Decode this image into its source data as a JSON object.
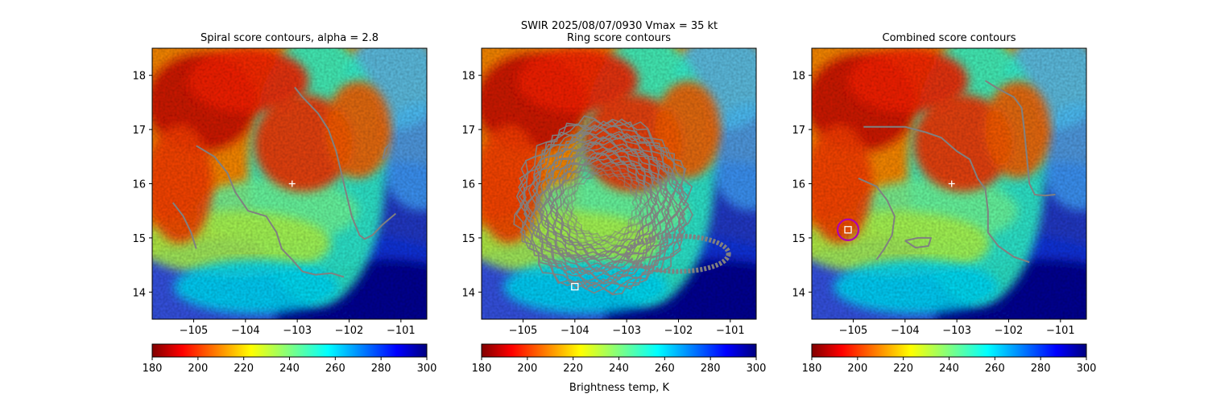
{
  "figure": {
    "suptitle_line1": "SWIR  2025/08/07/0930    Vmax = 35 kt"
  },
  "chart_data": [
    {
      "type": "heatmap",
      "title": "Spiral score contours, alpha =  2.8",
      "xlim": [
        -105.8,
        -100.5
      ],
      "ylim": [
        13.5,
        18.5
      ],
      "xticks": [
        -105,
        -104,
        -103,
        -102,
        -101
      ],
      "yticks": [
        14,
        15,
        16,
        17,
        18
      ],
      "center_marker": {
        "lon": -103.1,
        "lat": 16.0
      },
      "contour_lines": [
        {
          "points": [
            [
              -103.05,
              17.78
            ],
            [
              -102.9,
              17.6
            ],
            [
              -102.6,
              17.3
            ],
            [
              -102.4,
              17.0
            ],
            [
              -102.25,
              16.6
            ],
            [
              -102.15,
              16.2
            ],
            [
              -102.05,
              15.8
            ],
            [
              -101.95,
              15.4
            ],
            [
              -101.8,
              15.05
            ],
            [
              -101.7,
              14.98
            ],
            [
              -101.55,
              15.05
            ],
            [
              -101.35,
              15.25
            ],
            [
              -101.1,
              15.45
            ]
          ]
        },
        {
          "points": [
            [
              -104.95,
              16.7
            ],
            [
              -104.6,
              16.5
            ],
            [
              -104.35,
              16.2
            ],
            [
              -104.2,
              15.85
            ],
            [
              -103.95,
              15.5
            ],
            [
              -103.6,
              15.4
            ],
            [
              -103.4,
              15.1
            ],
            [
              -103.3,
              14.8
            ],
            [
              -103.1,
              14.6
            ],
            [
              -102.9,
              14.38
            ],
            [
              -102.65,
              14.32
            ],
            [
              -102.35,
              14.35
            ],
            [
              -102.1,
              14.28
            ]
          ]
        },
        {
          "points": [
            [
              -105.4,
              15.65
            ],
            [
              -105.2,
              15.4
            ],
            [
              -105.05,
              15.1
            ],
            [
              -104.95,
              14.8
            ]
          ]
        },
        {
          "points": [
            [
              -101.35,
              16.45
            ],
            [
              -101.25,
              16.55
            ],
            [
              -101.2,
              16.75
            ],
            [
              -101.3,
              16.65
            ],
            [
              -101.35,
              16.45
            ]
          ]
        }
      ]
    },
    {
      "type": "heatmap",
      "title": "Ring score contours",
      "xlim": [
        -105.8,
        -100.5
      ],
      "ylim": [
        13.5,
        18.5
      ],
      "xticks": [
        -105,
        -104,
        -103,
        -102,
        -101
      ],
      "yticks": [
        14,
        15,
        16,
        17,
        18
      ],
      "ring_region": {
        "center_lon": -103.45,
        "center_lat": 15.6,
        "radius_deg": 1.7,
        "extends_to_lon": -101.5
      },
      "best_point_marker": {
        "lon": -104.0,
        "lat": 14.1
      }
    },
    {
      "type": "heatmap",
      "title": "Combined score contours",
      "xlim": [
        -105.8,
        -100.5
      ],
      "ylim": [
        13.5,
        18.5
      ],
      "xticks": [
        -105,
        -104,
        -103,
        -102,
        -101
      ],
      "yticks": [
        14,
        15,
        16,
        17,
        18
      ],
      "center_marker": {
        "lon": -103.1,
        "lat": 16.0
      },
      "best_point_marker": {
        "lon": -105.1,
        "lat": 15.15
      },
      "circle_marker": {
        "lon": -105.1,
        "lat": 15.15,
        "color": "#b000b0"
      },
      "contour_lines": [
        {
          "points": [
            [
              -102.45,
              17.9
            ],
            [
              -102.2,
              17.75
            ],
            [
              -101.9,
              17.6
            ],
            [
              -101.75,
              17.4
            ],
            [
              -101.7,
              17.0
            ],
            [
              -101.65,
              16.5
            ],
            [
              -101.6,
              16.0
            ],
            [
              -101.5,
              15.8
            ],
            [
              -101.3,
              15.78
            ],
            [
              -101.1,
              15.8
            ]
          ]
        },
        {
          "points": [
            [
              -104.8,
              17.05
            ],
            [
              -104.4,
              17.05
            ],
            [
              -104.0,
              17.05
            ],
            [
              -103.6,
              16.95
            ],
            [
              -103.3,
              16.85
            ],
            [
              -103.0,
              16.6
            ],
            [
              -102.75,
              16.45
            ],
            [
              -102.6,
              16.1
            ],
            [
              -102.45,
              15.9
            ],
            [
              -102.4,
              15.5
            ],
            [
              -102.4,
              15.1
            ],
            [
              -102.2,
              14.85
            ],
            [
              -101.9,
              14.65
            ],
            [
              -101.6,
              14.55
            ]
          ]
        },
        {
          "points": [
            [
              -104.9,
              16.1
            ],
            [
              -104.55,
              15.95
            ],
            [
              -104.35,
              15.7
            ],
            [
              -104.2,
              15.4
            ],
            [
              -104.25,
              15.05
            ],
            [
              -104.4,
              14.8
            ],
            [
              -104.55,
              14.6
            ]
          ]
        },
        {
          "points": [
            [
              -104.0,
              14.95
            ],
            [
              -103.75,
              15.0
            ],
            [
              -103.5,
              15.0
            ],
            [
              -103.55,
              14.85
            ],
            [
              -103.8,
              14.82
            ],
            [
              -104.0,
              14.95
            ]
          ]
        }
      ]
    }
  ],
  "colorbar": {
    "label": "Brightness temp, K",
    "range": [
      180,
      300
    ],
    "ticks": [
      180,
      200,
      220,
      240,
      260,
      280,
      300
    ],
    "colormap": "jet_r"
  }
}
